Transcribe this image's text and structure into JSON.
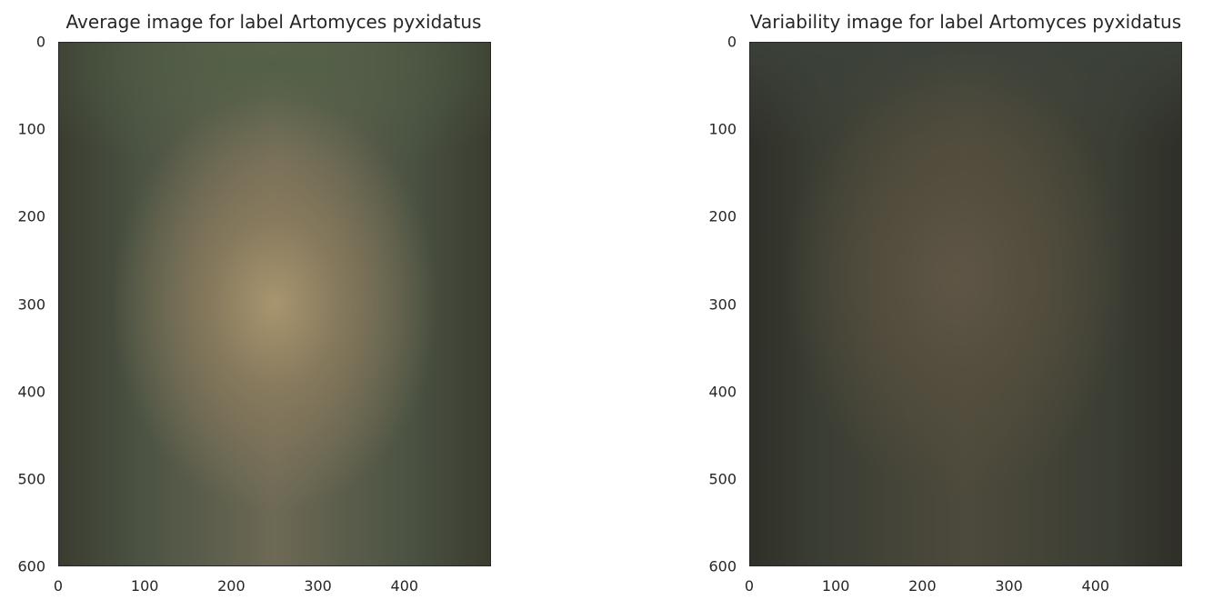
{
  "chart_data": [
    {
      "type": "heatmap",
      "title": "Average image for label Artomyces pyxidatus",
      "xlabel": "",
      "ylabel": "",
      "xlim": [
        0,
        500
      ],
      "ylim": [
        600,
        0
      ],
      "x_ticks": [
        0,
        100,
        200,
        300,
        400
      ],
      "y_ticks": [
        0,
        100,
        200,
        300,
        400,
        500,
        600
      ],
      "grid": false,
      "colors": {
        "edge": "#4a5242",
        "center": "#a8956e",
        "mid": "#6d6955",
        "dark": "#3a3c30"
      }
    },
    {
      "type": "heatmap",
      "title": "Variability image for label Artomyces pyxidatus",
      "xlabel": "",
      "ylabel": "",
      "xlim": [
        0,
        500
      ],
      "ylim": [
        600,
        0
      ],
      "x_ticks": [
        0,
        100,
        200,
        300,
        400
      ],
      "y_ticks": [
        0,
        100,
        200,
        300,
        400,
        500,
        600
      ],
      "grid": false,
      "colors": {
        "edge": "#3a3d33",
        "center": "#5e5545",
        "mid": "#4d4a3c",
        "dark": "#2f2f28"
      }
    }
  ]
}
